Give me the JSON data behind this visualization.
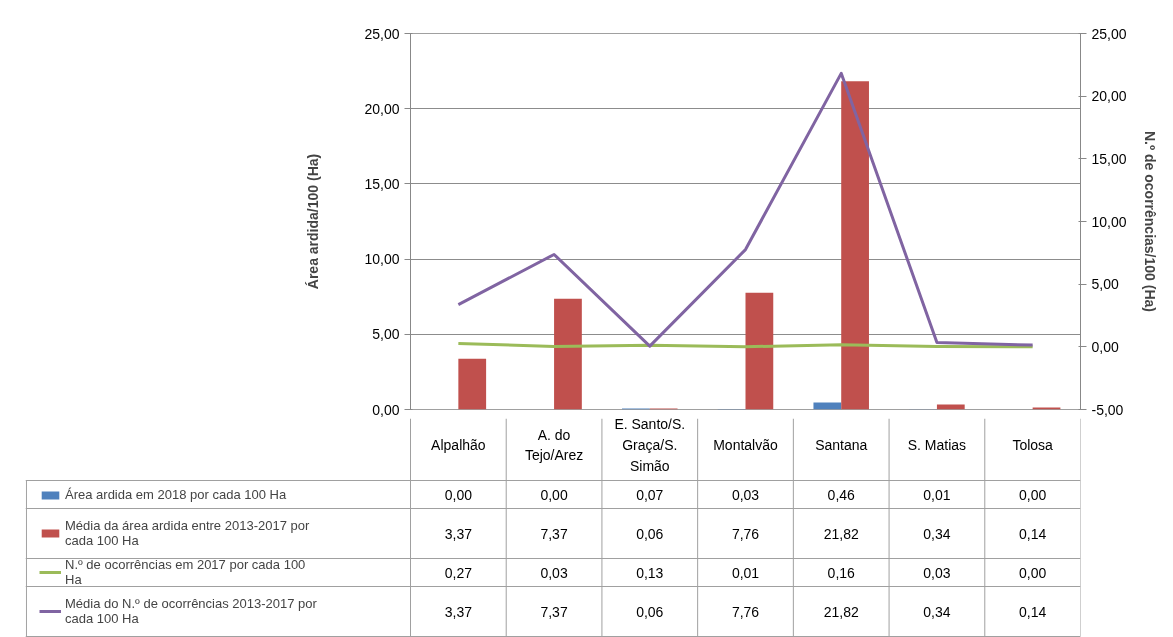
{
  "chart_data": {
    "type": "bar",
    "ylabel": "Área ardida/100 (Ha)",
    "y2label": "N.º de ocorrências/100 (Ha)",
    "categories": [
      "Alpalhão",
      "A. do Tejo/Arez",
      "E. Santo/S. Graça/S. Simão",
      "Montalvão",
      "Santana",
      "S. Matias",
      "Tolosa"
    ],
    "series": [
      {
        "name": "Área ardida em 2018 por cada 100 Ha",
        "color": "#4f81bd",
        "values": [
          0.0,
          0.0,
          0.07,
          0.03,
          0.46,
          0.01,
          0.0
        ],
        "value_labels": [
          "0,00",
          "0,00",
          "0,07",
          "0,03",
          "0,46",
          "0,01",
          "0,00"
        ]
      },
      {
        "name": "Média da área ardida entre 2013-2017 por cada 100 Ha",
        "color": "#c0504d",
        "values": [
          3.37,
          7.37,
          0.06,
          7.76,
          21.82,
          0.34,
          0.14
        ],
        "value_labels": [
          "3,37",
          "7,37",
          "0,06",
          "7,76",
          "21,82",
          "0,34",
          "0,14"
        ]
      },
      {
        "name": "N.º de ocorrências em 2017 por cada 100 Ha",
        "type": "line",
        "axis": "y2",
        "color": "#9bbb59",
        "values": [
          0.27,
          0.03,
          0.13,
          0.01,
          0.16,
          0.03,
          0.0
        ],
        "value_labels": [
          "0,27",
          "0,03",
          "0,13",
          "0,01",
          "0,16",
          "0,03",
          "0,00"
        ]
      },
      {
        "name": "Média do N.º de ocorrências 2013-2017 por cada 100 Ha",
        "type": "line",
        "axis": "y2",
        "color": "#8064a2",
        "values": [
          3.37,
          7.37,
          0.06,
          7.76,
          21.82,
          0.34,
          0.14
        ],
        "value_labels": [
          "3,37",
          "7,37",
          "0,06",
          "7,76",
          "21,82",
          "0,34",
          "0,14"
        ]
      }
    ],
    "ylim": [
      0,
      25
    ],
    "yticks": [
      {
        "value": 0,
        "label": "0,00"
      },
      {
        "value": 5,
        "label": "5,00"
      },
      {
        "value": 10,
        "label": "10,00"
      },
      {
        "value": 15,
        "label": "15,00"
      },
      {
        "value": 20,
        "label": "20,00"
      },
      {
        "value": 25,
        "label": "25,00"
      }
    ],
    "y2lim": [
      -5,
      25
    ],
    "y2ticks": [
      {
        "value": -5,
        "label": "-5,00"
      },
      {
        "value": 0,
        "label": "0,00"
      },
      {
        "value": 5,
        "label": "5,00"
      },
      {
        "value": 10,
        "label": "10,00"
      },
      {
        "value": 15,
        "label": "15,00"
      },
      {
        "value": 20,
        "label": "20,00"
      },
      {
        "value": 25,
        "label": "25,00"
      }
    ],
    "grid": "y",
    "legend": "bottom",
    "line_style": "solid",
    "marker": "none"
  }
}
